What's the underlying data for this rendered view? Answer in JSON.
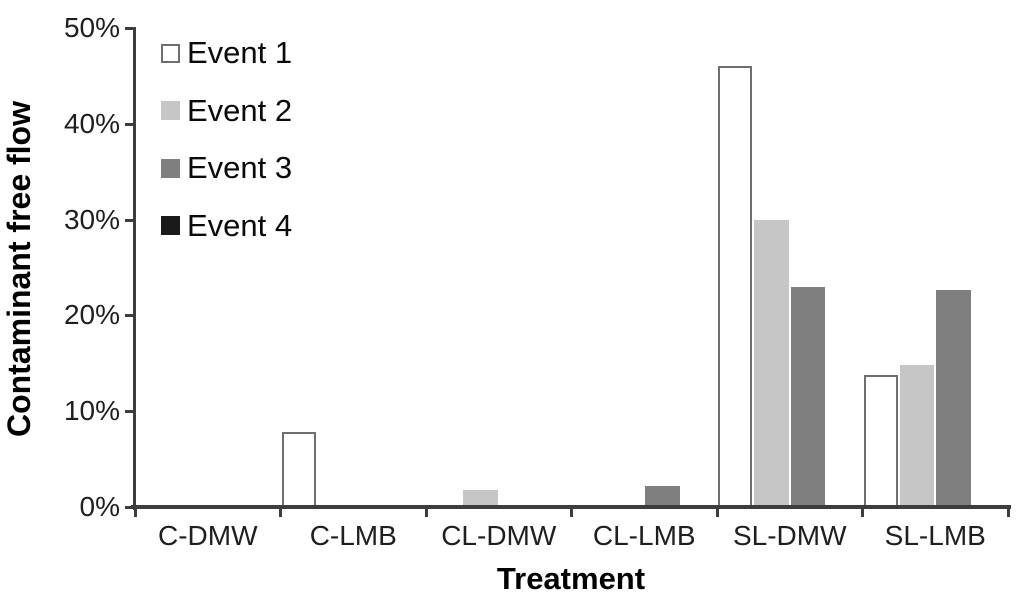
{
  "chart_data": {
    "type": "bar",
    "title": "",
    "xlabel": "Treatment",
    "ylabel": "Contaminant free flow",
    "categories": [
      "C-DMW",
      "C-LMB",
      "CL-DMW",
      "CL-LMB",
      "SL-DMW",
      "SL-LMB"
    ],
    "series": [
      {
        "name": "Event 1",
        "fill": "#ffffff",
        "border": "#6f6f6f",
        "values": [
          0,
          7.8,
          0,
          0,
          46,
          13.8
        ]
      },
      {
        "name": "Event 2",
        "fill": "#c6c6c6",
        "border": "#c6c6c6",
        "values": [
          0,
          0,
          1.8,
          0,
          30,
          14.8
        ]
      },
      {
        "name": "Event 3",
        "fill": "#7f7f7f",
        "border": "#7f7f7f",
        "values": [
          0,
          0,
          0,
          2.2,
          23,
          22.6
        ]
      },
      {
        "name": "Event 4",
        "fill": "#1a1a1a",
        "border": "#1a1a1a",
        "values": [
          0,
          0,
          0,
          0,
          0,
          0
        ]
      }
    ],
    "y_axis": {
      "min": 0,
      "max": 50,
      "tick_step": 10,
      "tick_labels": [
        "0%",
        "10%",
        "20%",
        "30%",
        "40%",
        "50%"
      ]
    },
    "legend_position": "top-left-inside",
    "grid": false,
    "colors": {
      "axis": "#3d3d3d",
      "text": "#1f1f1f"
    }
  }
}
